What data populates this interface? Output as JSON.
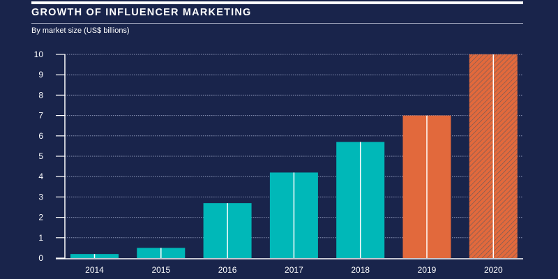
{
  "chart_data": {
    "type": "bar",
    "title": "GROWTH OF INFLUENCER MARKETING",
    "subtitle": "By market size (US$ billions)",
    "xlabel": "",
    "ylabel": "",
    "categories": [
      "2014",
      "2015",
      "2016",
      "2017",
      "2018",
      "2019",
      "2020"
    ],
    "values": [
      0.2,
      0.5,
      2.7,
      4.2,
      5.7,
      7.0,
      10.0
    ],
    "bar_styles": [
      "solid",
      "solid",
      "solid",
      "solid",
      "solid",
      "solid",
      "hatched"
    ],
    "bar_colors": [
      "#00b8b8",
      "#00b8b8",
      "#00b8b8",
      "#00b8b8",
      "#00b8b8",
      "#e2693c",
      "#e2693c"
    ],
    "ylim": [
      0,
      10
    ],
    "yticks": [
      "0",
      "1",
      "2",
      "3",
      "4",
      "5",
      "6",
      "7",
      "8",
      "9",
      "10"
    ],
    "grid": true,
    "legend": "none"
  },
  "colors": {
    "background": "#19244b",
    "teal": "#00b8b8",
    "orange": "#e2693c"
  }
}
